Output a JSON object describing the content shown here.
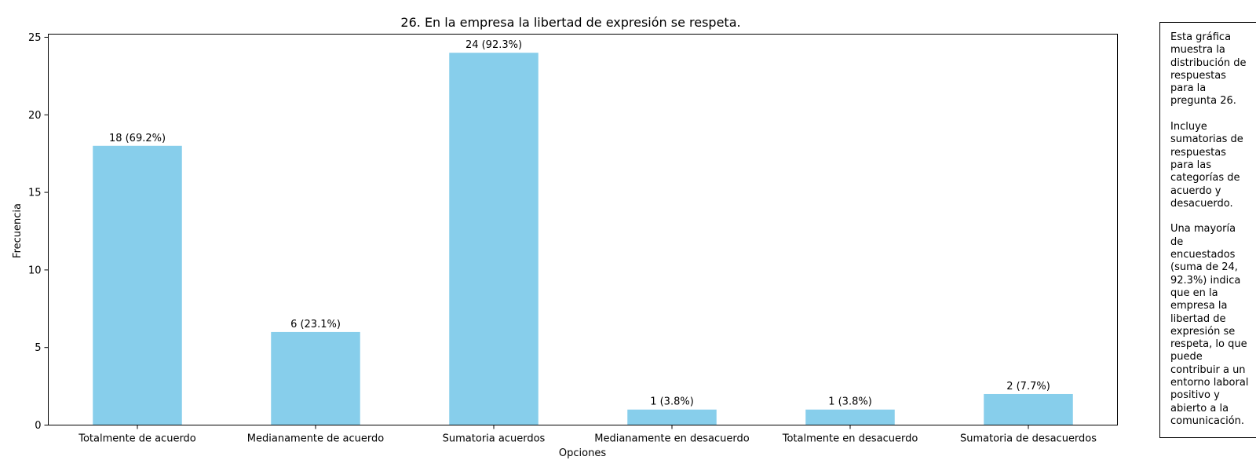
{
  "chart_data": {
    "type": "bar",
    "title": "26. En la empresa la libertad de expresión se respeta.",
    "xlabel": "Opciones",
    "ylabel": "Frecuencia",
    "ylim": [
      0,
      25.2
    ],
    "yticks": [
      0,
      5,
      10,
      15,
      20,
      25
    ],
    "grid": false,
    "categories": [
      "Totalmente de acuerdo",
      "Medianamente de acuerdo",
      "Sumatoria acuerdos",
      "Medianamente en desacuerdo",
      "Totalmente en desacuerdo",
      "Sumatoria de desacuerdos"
    ],
    "values": [
      18,
      6,
      24,
      1,
      1,
      2
    ],
    "data_labels": [
      "18 (69.2%)",
      "6 (23.1%)",
      "24 (92.3%)",
      "1 (3.8%)",
      "1 (3.8%)",
      "2 (7.7%)"
    ],
    "bar_color": "#87ceeb"
  },
  "note": {
    "text": "Esta gráfica\nmuestra la\ndistribución de\nrespuestas\npara la\npregunta 26.\n\nIncluye\nsumatorias de\nrespuestas\npara las\ncategorías de\nacuerdo y\ndesacuerdo.\n\nUna mayoría\nde\nencuestados\n(suma de 24,\n92.3%) indica\nque en la\nempresa la\nlibertad de\nexpresión se\nrespeta, lo que\npuede\ncontribuir a un\nentorno laboral\npositivo y\nabierto a la\ncomunicación."
  }
}
